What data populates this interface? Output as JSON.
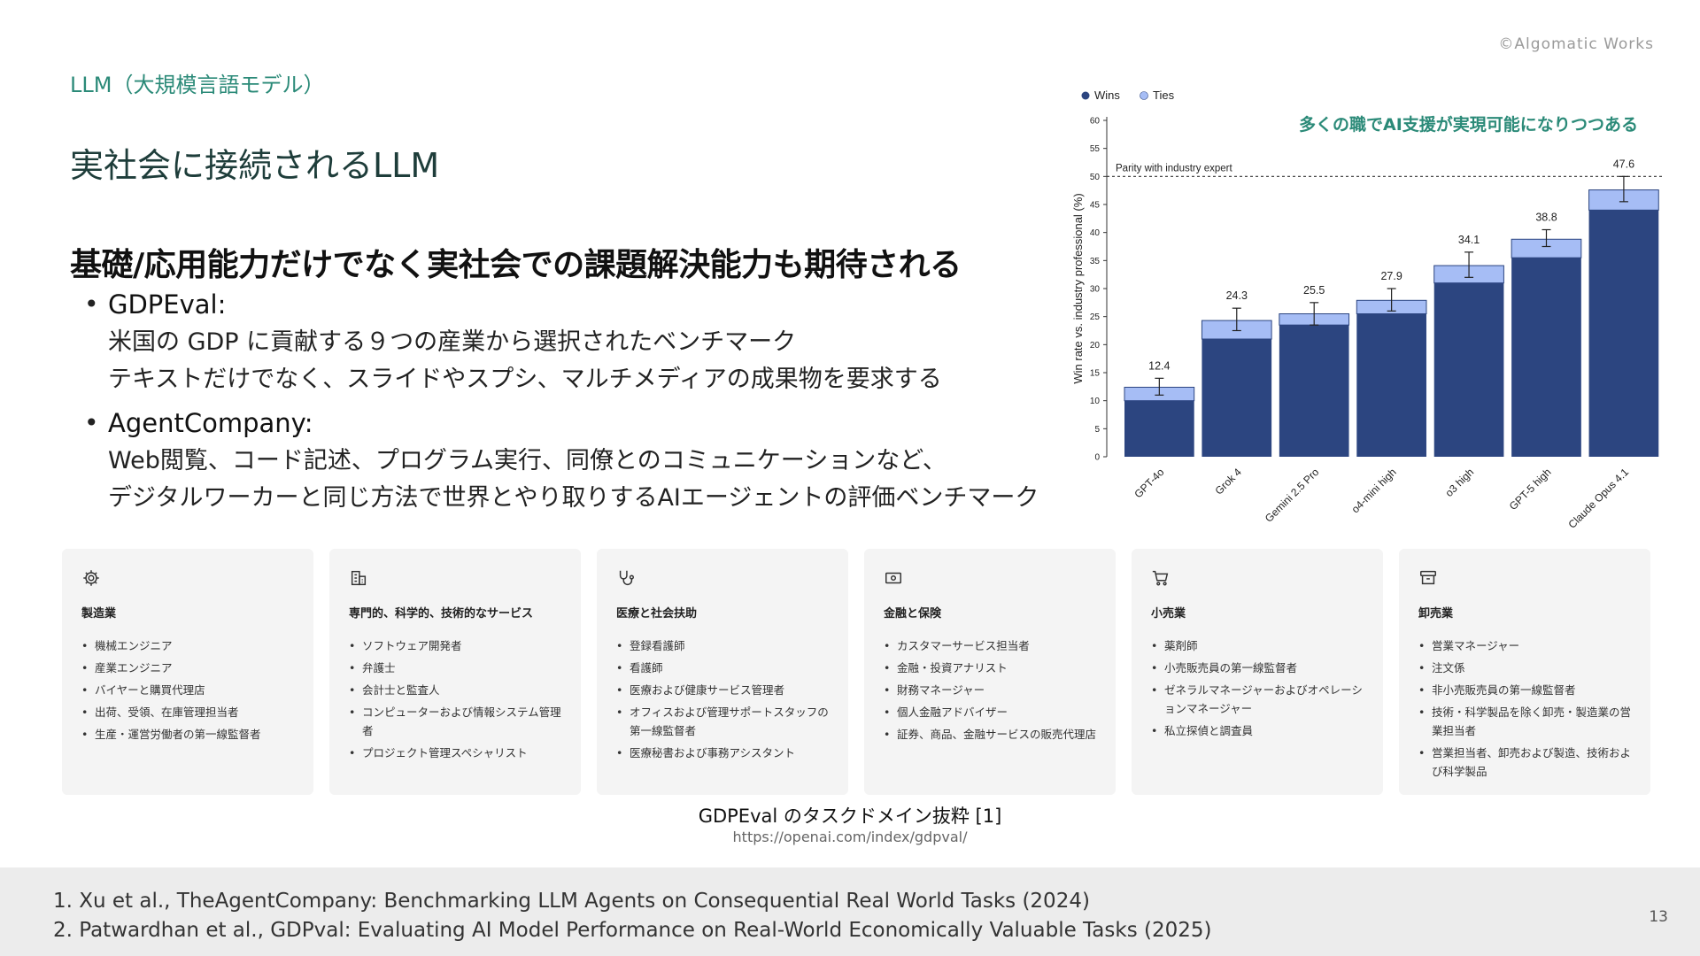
{
  "header": {
    "copyright": "©Algomatic Works",
    "section": "LLM（大規模言語モデル）",
    "title": "実社会に接続されるLLM",
    "heading": "基礎/応用能力だけでなく実社会での課題解決能力も期待される"
  },
  "bullets": [
    {
      "title": "GDPEval:",
      "lines": [
        "米国の GDP に貢献する９つの産業から選択されたベンチマーク",
        "テキストだけでなく、スライドやスプシ、マルチメディアの成果物を要求する"
      ]
    },
    {
      "title": "AgentCompany:",
      "lines": [
        "Web閲覧、コード記述、プログラム実行、同僚とのコミュニケーションなど、",
        "デジタルワーカーと同じ方法で世界とやり取りするAIエージェントの評価ベンチマーク"
      ]
    }
  ],
  "chart_data": {
    "type": "bar",
    "annotation": "多くの職でAI支援が実現可能になりつつある",
    "ylabel": "Win rate vs. industry professional (%)",
    "ylim": [
      0,
      60
    ],
    "yticks": [
      0,
      5,
      10,
      15,
      20,
      25,
      30,
      35,
      40,
      45,
      50,
      55,
      60
    ],
    "parity_line": {
      "value": 50,
      "label": "Parity with industry expert"
    },
    "legend": {
      "position": "top-left",
      "entries": [
        "Wins",
        "Ties"
      ]
    },
    "categories": [
      "GPT-4o",
      "Grok 4",
      "Gemini 2.5 Pro",
      "o4-mini high",
      "o3 high",
      "GPT-5 high",
      "Claude Opus 4.1"
    ],
    "series": [
      {
        "name": "Wins",
        "values": [
          10,
          21,
          23.5,
          25.5,
          31,
          35.5,
          44
        ]
      },
      {
        "name": "Ties",
        "values": [
          2.4,
          3.3,
          2.0,
          2.4,
          3.1,
          3.3,
          3.6
        ]
      }
    ],
    "totals": [
      12.4,
      24.3,
      25.5,
      27.9,
      34.1,
      38.8,
      47.6
    ],
    "error_bars": [
      [
        11,
        14
      ],
      [
        22.5,
        26.5
      ],
      [
        23.5,
        27.5
      ],
      [
        26,
        30
      ],
      [
        32,
        36.5
      ],
      [
        37.5,
        40.5
      ],
      [
        45.5,
        50
      ]
    ],
    "colors": {
      "wins": "#2c4580",
      "ties": "#a6bdf5",
      "annotation": "#2b8a78"
    }
  },
  "cards": [
    {
      "icon": "gear-icon",
      "title": "製造業",
      "items": [
        "機械エンジニア",
        "産業エンジニア",
        "バイヤーと購買代理店",
        "出荷、受領、在庫管理担当者",
        "生産・運営労働者の第一線監督者"
      ]
    },
    {
      "icon": "building-icon",
      "title": "専門的、科学的、技術的なサービス",
      "items": [
        "ソフトウェア開発者",
        "弁護士",
        "会計士と監査人",
        "コンピューターおよび情報システム管理者",
        "プロジェクト管理スペシャリスト"
      ]
    },
    {
      "icon": "stethoscope-icon",
      "title": "医療と社会扶助",
      "items": [
        "登録看護師",
        "看護師",
        "医療および健康サービス管理者",
        "オフィスおよび管理サポートスタッフの第一線監督者",
        "医療秘書および事務アシスタント"
      ]
    },
    {
      "icon": "banknote-icon",
      "title": "金融と保険",
      "items": [
        "カスタマーサービス担当者",
        "金融・投資アナリスト",
        "財務マネージャー",
        "個人金融アドバイザー",
        "証券、商品、金融サービスの販売代理店"
      ]
    },
    {
      "icon": "cart-icon",
      "title": "小売業",
      "items": [
        "薬剤師",
        "小売販売員の第一線監督者",
        "ゼネラルマネージャーおよびオペレーションマネージャー",
        "私立探偵と調査員"
      ]
    },
    {
      "icon": "package-icon",
      "title": "卸売業",
      "items": [
        "営業マネージャー",
        "注文係",
        "非小売販売員の第一線監督者",
        "技術・科学製品を除く卸売・製造業の営業担当者",
        "営業担当者、卸売および製造、技術および科学製品"
      ]
    }
  ],
  "caption": "GDPEval のタスクドメイン抜粋 [1]",
  "source_url": "https://openai.com/index/gdpval/",
  "references": [
    "1. Xu et al., TheAgentCompany: Benchmarking LLM Agents on Consequential Real World Tasks (2024)",
    "2. Patwardhan et al., GDPval: Evaluating AI Model Performance on Real-World Economically Valuable Tasks (2025)"
  ],
  "page_number": "13"
}
